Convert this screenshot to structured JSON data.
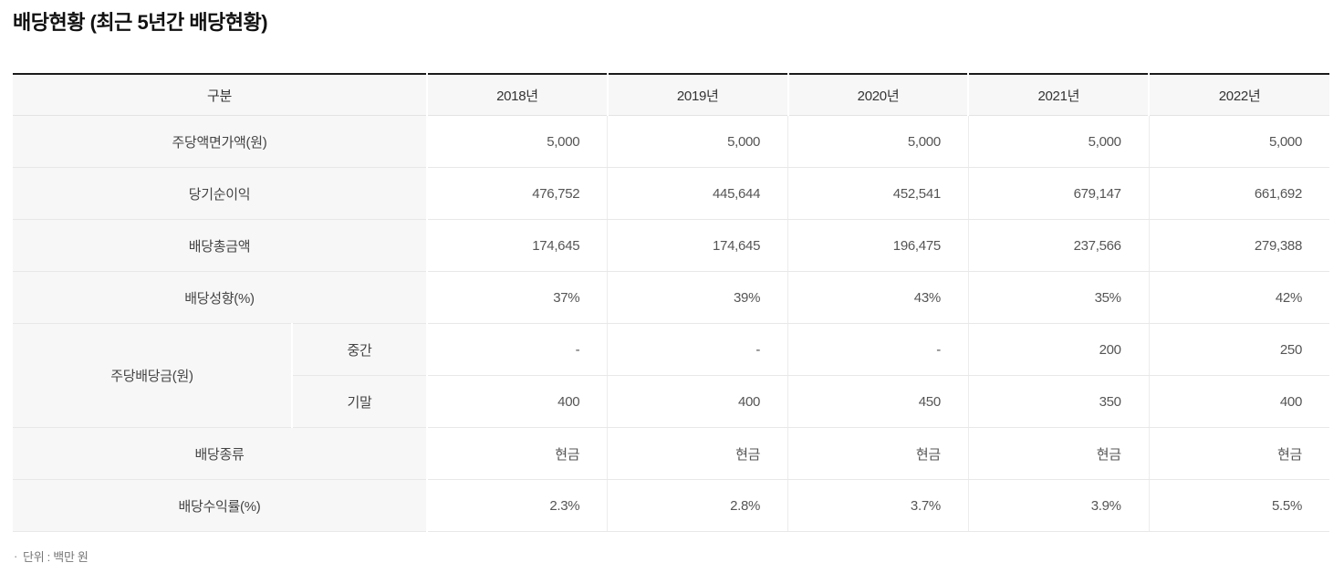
{
  "page": {
    "title": "배당현황 (최근 5년간 배당현황)",
    "footnote_bullet": "·",
    "footnote_text": "단위 : 백만 원"
  },
  "table": {
    "header": {
      "label": "구분",
      "years": [
        "2018년",
        "2019년",
        "2020년",
        "2021년",
        "2022년"
      ]
    },
    "rows": [
      {
        "label": "주당액면가액(원)",
        "values": [
          "5,000",
          "5,000",
          "5,000",
          "5,000",
          "5,000"
        ]
      },
      {
        "label": "당기순이익",
        "values": [
          "476,752",
          "445,644",
          "452,541",
          "679,147",
          "661,692"
        ]
      },
      {
        "label": "배당총금액",
        "values": [
          "174,645",
          "174,645",
          "196,475",
          "237,566",
          "279,388"
        ]
      },
      {
        "label": "배당성향(%)",
        "values": [
          "37%",
          "39%",
          "43%",
          "35%",
          "42%"
        ]
      },
      {
        "label": "주당배당금(원)",
        "sublabel": "중간",
        "values": [
          "-",
          "-",
          "-",
          "200",
          "250"
        ]
      },
      {
        "label": "주당배당금(원)",
        "sublabel": "기말",
        "values": [
          "400",
          "400",
          "450",
          "350",
          "400"
        ]
      },
      {
        "label": "배당종류",
        "values": [
          "현금",
          "현금",
          "현금",
          "현금",
          "현금"
        ]
      },
      {
        "label": "배당수익률(%)",
        "values": [
          "2.3%",
          "2.8%",
          "3.7%",
          "3.9%",
          "5.5%"
        ]
      }
    ],
    "colors": {
      "accent_border_top": "#1b1b1b",
      "header_background": "#f7f7f7",
      "row_border": "#e8e8e8",
      "value_text": "#555555",
      "label_text": "#444444"
    }
  }
}
